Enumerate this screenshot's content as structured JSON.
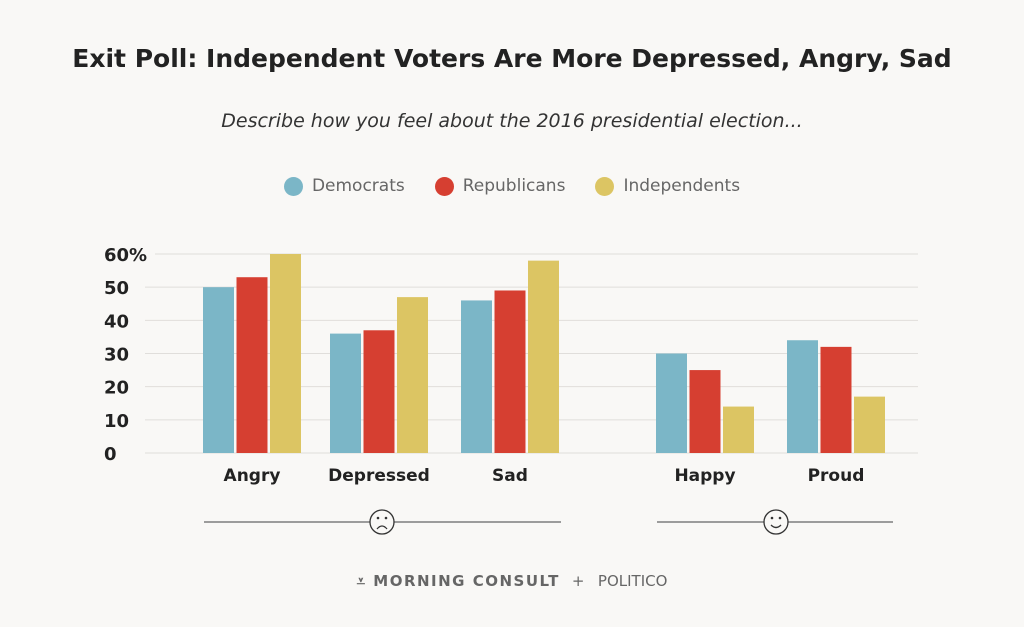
{
  "chart_data": {
    "type": "bar",
    "title": "Exit Poll: Independent Voters Are More Depressed, Angry, Sad",
    "subtitle": "Describe how you feel about the 2016 presidential election...",
    "categories": [
      "Angry",
      "Depressed",
      "Sad",
      "Happy",
      "Proud"
    ],
    "series": [
      {
        "name": "Democrats",
        "color": "#7bb6c7",
        "values": [
          50,
          36,
          46,
          30,
          34
        ]
      },
      {
        "name": "Republicans",
        "color": "#d63f31",
        "values": [
          53,
          37,
          49,
          25,
          32
        ]
      },
      {
        "name": "Independents",
        "color": "#dcc563",
        "values": [
          60,
          47,
          58,
          14,
          17
        ]
      }
    ],
    "yticks": [
      "0",
      "10",
      "20",
      "30",
      "40",
      "50",
      "60%"
    ],
    "ylim": [
      0,
      60
    ],
    "grid": true,
    "legend_position": "top-center",
    "groups": [
      {
        "name": "negative",
        "icon": "frown-face-icon"
      },
      {
        "name": "positive",
        "icon": "smile-face-icon"
      }
    ]
  },
  "footer": {
    "brand1": "MORNING CONSULT",
    "plus": "+",
    "brand2": "POLITICO"
  }
}
